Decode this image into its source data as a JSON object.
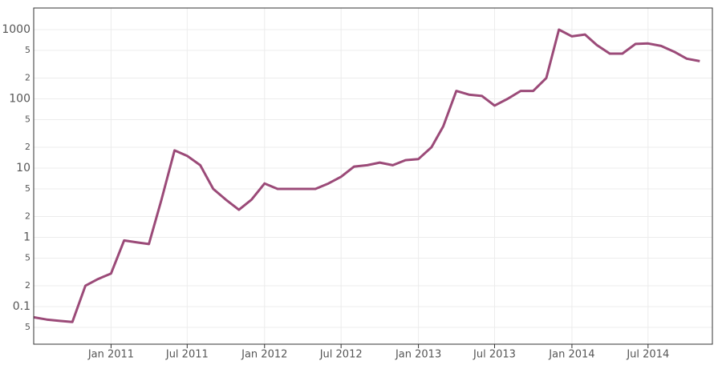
{
  "chart_data": {
    "type": "line",
    "log_scale_y": true,
    "grid": true,
    "x": [
      "2010-07",
      "2010-08",
      "2010-09",
      "2010-10",
      "2010-11",
      "2010-12",
      "2011-01",
      "2011-02",
      "2011-03",
      "2011-04",
      "2011-05",
      "2011-06",
      "2011-07",
      "2011-08",
      "2011-09",
      "2011-10",
      "2011-11",
      "2011-12",
      "2012-01",
      "2012-02",
      "2012-03",
      "2012-04",
      "2012-05",
      "2012-06",
      "2012-07",
      "2012-08",
      "2012-09",
      "2012-10",
      "2012-11",
      "2012-12",
      "2013-01",
      "2013-02",
      "2013-03",
      "2013-04",
      "2013-05",
      "2013-06",
      "2013-07",
      "2013-08",
      "2013-09",
      "2013-10",
      "2013-11",
      "2013-12",
      "2014-01",
      "2014-02",
      "2014-03",
      "2014-04",
      "2014-05",
      "2014-06",
      "2014-07",
      "2014-08",
      "2014-09",
      "2014-10",
      "2014-11"
    ],
    "series": [
      {
        "color": "#9b4a78",
        "values": [
          0.07,
          0.065,
          0.062,
          0.06,
          0.2,
          0.25,
          0.3,
          0.9,
          0.85,
          0.8,
          3.5,
          18,
          15,
          11,
          5,
          3.5,
          2.5,
          3.5,
          6,
          5,
          5,
          5,
          5,
          6,
          7.5,
          10.5,
          11,
          12,
          11,
          13,
          13.5,
          20,
          40,
          130,
          115,
          110,
          80,
          100,
          130,
          130,
          200,
          1000,
          800,
          850,
          600,
          450,
          450,
          620,
          630,
          580,
          480,
          380,
          350
        ]
      }
    ],
    "xlim": [
      "2010-07",
      "2014-12"
    ],
    "xticks": [
      {
        "value": "2011-01",
        "label": "Jan 2011"
      },
      {
        "value": "2011-07",
        "label": "Jul 2011"
      },
      {
        "value": "2012-01",
        "label": "Jan 2012"
      },
      {
        "value": "2012-07",
        "label": "Jul 2012"
      },
      {
        "value": "2013-01",
        "label": "Jan 2013"
      },
      {
        "value": "2013-07",
        "label": "Jul 2013"
      },
      {
        "value": "2014-01",
        "label": "Jan 2014"
      },
      {
        "value": "2014-07",
        "label": "Jul 2014"
      }
    ],
    "ylim": [
      0.0286,
      2051
    ],
    "yticks": [
      {
        "value": 0.05,
        "label": "5"
      },
      0.1,
      {
        "value": 0.2,
        "label": "2"
      },
      {
        "value": 0.5,
        "label": "5"
      },
      1,
      {
        "value": 2,
        "label": "2"
      },
      {
        "value": 5,
        "label": "5"
      },
      10,
      {
        "value": 20,
        "label": "2"
      },
      {
        "value": 50,
        "label": "5"
      },
      100,
      {
        "value": 200,
        "label": "2"
      },
      {
        "value": 500,
        "label": "5"
      },
      1000
    ]
  }
}
